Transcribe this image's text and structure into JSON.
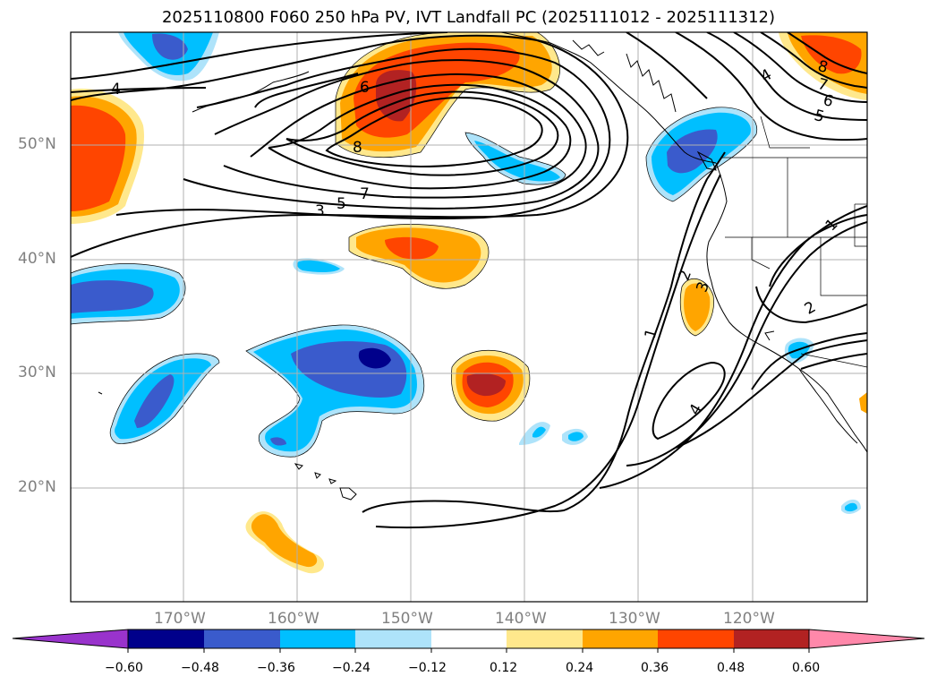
{
  "title": "2025110800 F060 250 hPa PV, IVT Landfall PC (2025111012 - 2025111312)",
  "lat_labels": [
    "50°N",
    "40°N",
    "30°N",
    "20°N"
  ],
  "lon_labels": [
    "170°W",
    "160°W",
    "150°W",
    "140°W",
    "130°W",
    "120°W"
  ],
  "contour_labels": [
    "4",
    "6",
    "8",
    "7",
    "5",
    "3",
    "1",
    "2",
    "3",
    "4",
    "4",
    "7",
    "6",
    "5",
    "8",
    "1",
    "2"
  ],
  "colorbar": {
    "ticks": [
      "−0.60",
      "−0.48",
      "−0.36",
      "−0.24",
      "−0.12",
      "0.12",
      "0.24",
      "0.36",
      "0.48",
      "0.60"
    ],
    "colors": [
      "#9933cc",
      "#00008b",
      "#3a5bcc",
      "#00bfff",
      "#aee3fa",
      "#ffffff",
      "#ffe88c",
      "#ffa500",
      "#ff4500",
      "#b22222",
      "#ff88aa"
    ]
  }
}
